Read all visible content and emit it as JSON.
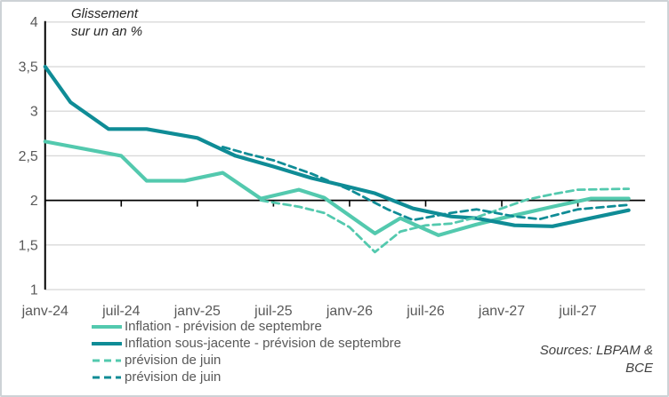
{
  "panel": {
    "background": "#ffffff",
    "border_color": "#cdd2d6"
  },
  "chart_data": {
    "type": "line",
    "title": "Glissement sur un an %",
    "title_lines": [
      "Glissement",
      "sur un an %"
    ],
    "x_unit": "months since janv-24",
    "ylim": [
      1,
      4
    ],
    "axis_cross_value": 2,
    "x_max_month": 47.3,
    "grid_color": "#D9D9D9",
    "axis_color": "#000000",
    "tick_text_color": "#595959",
    "legend_position": "bottom-left",
    "y_ticks": [
      {
        "v": 4,
        "label": "4"
      },
      {
        "v": 3.5,
        "label": "3,5"
      },
      {
        "v": 3,
        "label": "3"
      },
      {
        "v": 2.5,
        "label": "2,5"
      },
      {
        "v": 2,
        "label": "2"
      },
      {
        "v": 1.5,
        "label": "1,5"
      },
      {
        "v": 1,
        "label": "1"
      }
    ],
    "x_ticks": [
      {
        "m": 0,
        "label": "janv-24"
      },
      {
        "m": 6,
        "label": "juil-24"
      },
      {
        "m": 12,
        "label": "janv-25"
      },
      {
        "m": 18,
        "label": "juil-25"
      },
      {
        "m": 24,
        "label": "janv-26"
      },
      {
        "m": 30,
        "label": "juil-26"
      },
      {
        "m": 36,
        "label": "janv-27"
      },
      {
        "m": 42,
        "label": "juil-27"
      }
    ],
    "series": [
      {
        "name": "Inflation - prévision de septembre",
        "color": "#53C9AE",
        "dash": false,
        "points": [
          [
            0,
            2.66
          ],
          [
            6,
            2.5
          ],
          [
            8,
            2.22
          ],
          [
            11,
            2.22
          ],
          [
            14,
            2.31
          ],
          [
            17,
            2.02
          ],
          [
            20,
            2.12
          ],
          [
            22,
            2.03
          ],
          [
            26,
            1.63
          ],
          [
            28,
            1.8
          ],
          [
            31,
            1.61
          ],
          [
            34,
            1.73
          ],
          [
            36,
            1.8
          ],
          [
            40,
            1.93
          ],
          [
            43,
            2.02
          ],
          [
            46,
            2.02
          ]
        ]
      },
      {
        "name": "Inflation sous-jacente - prévision de septembre",
        "color": "#0F8C96",
        "dash": false,
        "points": [
          [
            0,
            3.5
          ],
          [
            2,
            3.1
          ],
          [
            5,
            2.8
          ],
          [
            8,
            2.8
          ],
          [
            12,
            2.7
          ],
          [
            15,
            2.5
          ],
          [
            18,
            2.38
          ],
          [
            21,
            2.25
          ],
          [
            24,
            2.15
          ],
          [
            26,
            2.08
          ],
          [
            29,
            1.91
          ],
          [
            32,
            1.82
          ],
          [
            34,
            1.8
          ],
          [
            37,
            1.72
          ],
          [
            40,
            1.71
          ],
          [
            43,
            1.8
          ],
          [
            46,
            1.89
          ]
        ]
      },
      {
        "name": "prévision de juin",
        "color": "#53C9AE",
        "dash": true,
        "points": [
          [
            17,
            2.0
          ],
          [
            20,
            1.93
          ],
          [
            22,
            1.86
          ],
          [
            24,
            1.7
          ],
          [
            26,
            1.42
          ],
          [
            28,
            1.65
          ],
          [
            30,
            1.72
          ],
          [
            32,
            1.74
          ],
          [
            34,
            1.81
          ],
          [
            36,
            1.91
          ],
          [
            38,
            2.01
          ],
          [
            40,
            2.07
          ],
          [
            42,
            2.12
          ],
          [
            46,
            2.13
          ]
        ]
      },
      {
        "name": "prévision de juin",
        "color": "#0F8C96",
        "dash": true,
        "points": [
          [
            14,
            2.6
          ],
          [
            16,
            2.52
          ],
          [
            18,
            2.45
          ],
          [
            21,
            2.3
          ],
          [
            24,
            2.12
          ],
          [
            27,
            1.9
          ],
          [
            29,
            1.78
          ],
          [
            32,
            1.86
          ],
          [
            34,
            1.9
          ],
          [
            37,
            1.82
          ],
          [
            39,
            1.79
          ],
          [
            42,
            1.9
          ],
          [
            46,
            1.95
          ]
        ]
      }
    ]
  },
  "source": {
    "line1": "Sources: LBPAM &",
    "line2": "BCE"
  }
}
